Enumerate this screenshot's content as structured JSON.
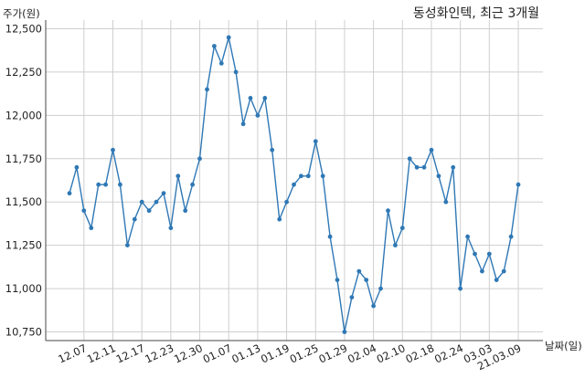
{
  "chart_data": {
    "type": "line",
    "title": "동성화인텍, 최근 3개월",
    "ylabel": "주가(원)",
    "xlabel": "날짜(일)",
    "ylim": [
      10700,
      12550
    ],
    "y_ticks": [
      10750,
      11000,
      11250,
      11500,
      11750,
      12000,
      12250,
      12500
    ],
    "y_tick_labels": [
      "10,750",
      "11,000",
      "11,250",
      "11,500",
      "11,750",
      "12,000",
      "12,250",
      "12,500"
    ],
    "x_ticks": [
      {
        "label": "12.07",
        "index": 2
      },
      {
        "label": "12.11",
        "index": 6
      },
      {
        "label": "12.17",
        "index": 10
      },
      {
        "label": "12.23",
        "index": 14
      },
      {
        "label": "12.30",
        "index": 18
      },
      {
        "label": "01.07",
        "index": 22
      },
      {
        "label": "01.13",
        "index": 26
      },
      {
        "label": "01.19",
        "index": 30
      },
      {
        "label": "01.25",
        "index": 34
      },
      {
        "label": "01.29",
        "index": 38
      },
      {
        "label": "02.04",
        "index": 42
      },
      {
        "label": "02.10",
        "index": 46
      },
      {
        "label": "02.18",
        "index": 50
      },
      {
        "label": "02.24",
        "index": 54
      },
      {
        "label": "03.03",
        "index": 58
      },
      {
        "label": "21.03.09",
        "index": 62
      }
    ],
    "grid": true,
    "line_color": "#2f78b5",
    "values": [
      11550,
      11700,
      11450,
      11350,
      11600,
      11600,
      11800,
      11600,
      11250,
      11400,
      11500,
      11450,
      11500,
      11550,
      11350,
      11650,
      11450,
      11600,
      11750,
      12150,
      12400,
      12300,
      12450,
      12250,
      11950,
      12100,
      12000,
      12100,
      11800,
      11400,
      11500,
      11600,
      11650,
      11650,
      11850,
      11650,
      11300,
      11050,
      10750,
      10950,
      11100,
      11050,
      10900,
      11000,
      11450,
      11250,
      11350,
      11750,
      11700,
      11700,
      11800,
      11650,
      11500,
      11700,
      11000,
      11300,
      11200,
      11100,
      11200,
      11050,
      11100,
      11300,
      11600
    ]
  }
}
